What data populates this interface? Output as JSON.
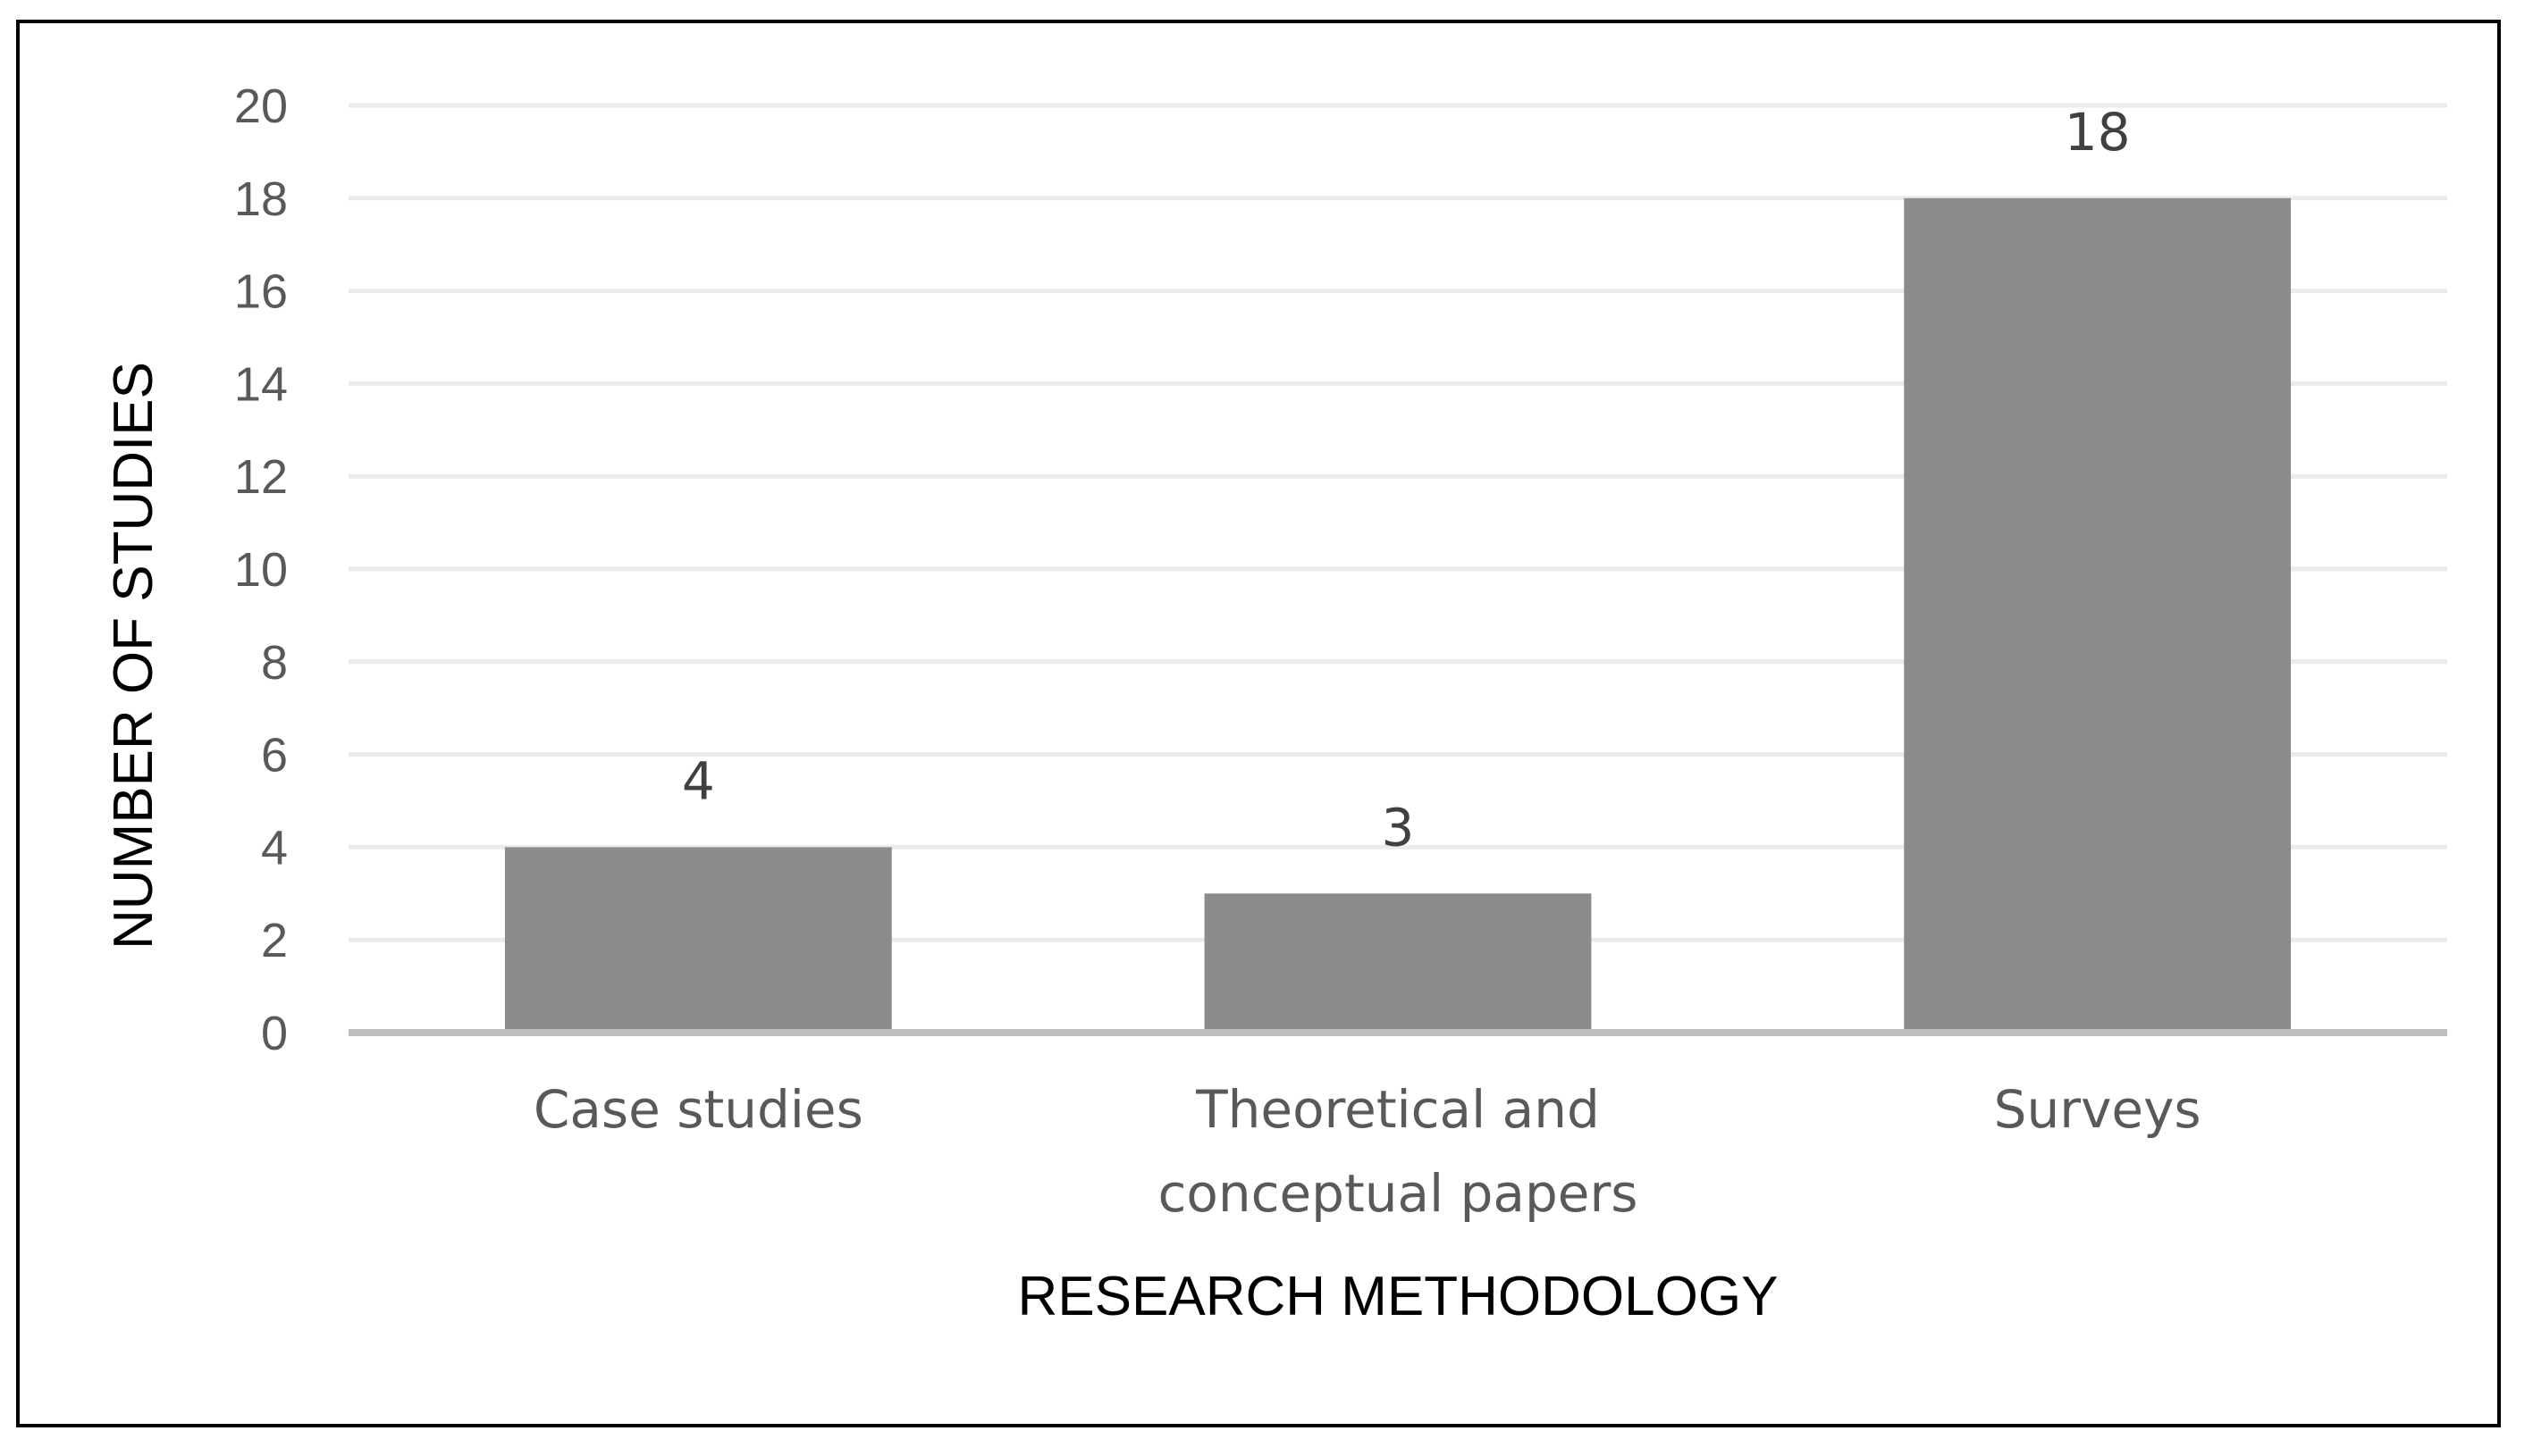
{
  "colors": {
    "bar": "#8c8c8c",
    "grid": "#ebebeb",
    "axis": "#bfbfbf",
    "tick_text": "#595959",
    "data_label": "#404040",
    "frame": "#000000"
  },
  "chart_data": {
    "type": "bar",
    "categories": [
      [
        "Case studies"
      ],
      [
        "Theoretical and",
        "conceptual papers"
      ],
      [
        "Surveys"
      ]
    ],
    "values": [
      4,
      3,
      18
    ],
    "data_labels": [
      "4",
      "3",
      "18"
    ],
    "xlabel": "RESEARCH METHODOLOGY",
    "ylabel": "NUMBER OF STUDIES",
    "ylim": [
      0,
      20
    ],
    "yticks": [
      0,
      2,
      4,
      6,
      8,
      10,
      12,
      14,
      16,
      18,
      20
    ],
    "grid": true,
    "legend": "none"
  }
}
